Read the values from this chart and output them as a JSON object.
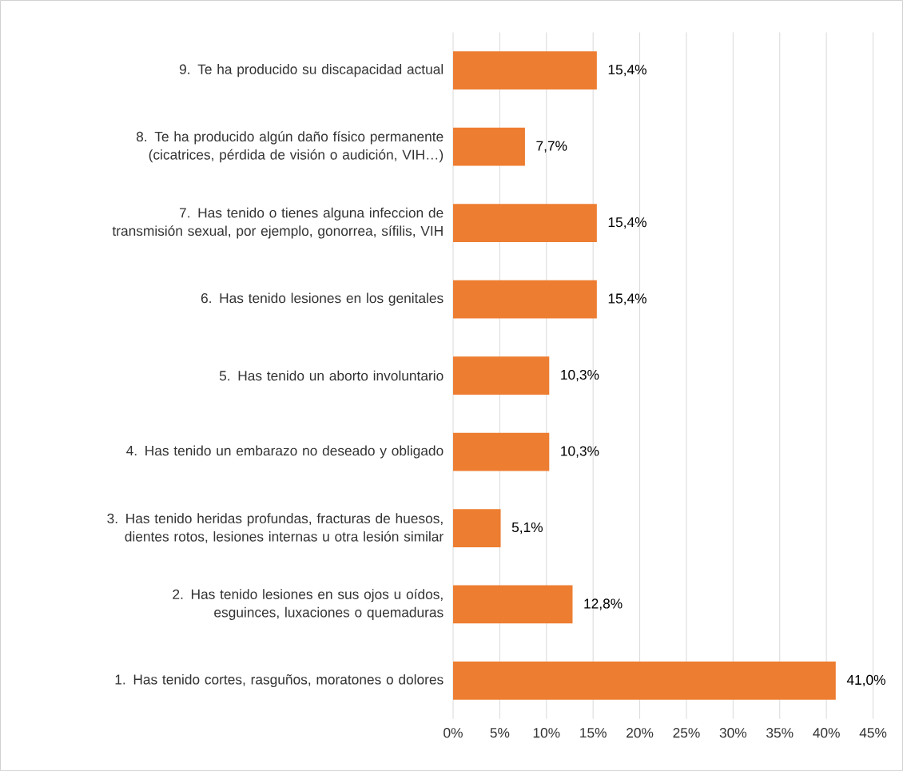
{
  "chart_data": {
    "type": "bar",
    "orientation": "horizontal",
    "categories": [
      "9. Te ha producido su discapacidad actual",
      "8. Te ha producido algún daño físico permanente (cicatrices, pérdida de visión o audición, VIH…)",
      "7. Has tenido o tienes alguna infeccion de transmisión sexual, por ejemplo, gonorrea, sífilis, VIH",
      "6. Has tenido lesiones en los genitales",
      "5. Has tenido un aborto involuntario",
      "4. Has tenido un embarazo no deseado y obligado",
      "3. Has tenido heridas profundas, fracturas de huesos, dientes rotos, lesiones internas u otra lesión similar",
      "2. Has tenido lesiones en sus ojos u oídos, esguinces, luxaciones o quemaduras",
      "1. Has tenido cortes, rasguños, moratones o dolores"
    ],
    "values": [
      15.4,
      7.7,
      15.4,
      15.4,
      10.3,
      10.3,
      5.1,
      12.8,
      41.0
    ],
    "value_labels": [
      "15,4%",
      "7,7%",
      "15,4%",
      "15,4%",
      "10,3%",
      "10,3%",
      "5,1%",
      "12,8%",
      "41,0%"
    ],
    "color": "#ed7d31",
    "xlim": [
      0,
      45
    ],
    "xticks": [
      {
        "value": 0,
        "label": "0%"
      },
      {
        "value": 5,
        "label": "5%"
      },
      {
        "value": 10,
        "label": "10%"
      },
      {
        "value": 15,
        "label": "15%"
      },
      {
        "value": 20,
        "label": "20%"
      },
      {
        "value": 25,
        "label": "25%"
      },
      {
        "value": 30,
        "label": "30%"
      },
      {
        "value": 35,
        "label": "35%"
      },
      {
        "value": 40,
        "label": "40%"
      },
      {
        "value": 45,
        "label": "45%"
      }
    ],
    "grid": "x"
  }
}
